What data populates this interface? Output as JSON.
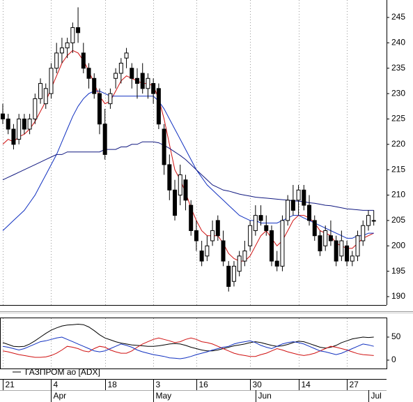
{
  "chart_data": [
    {
      "type": "candlestick",
      "categories": [
        "21",
        null,
        null,
        null,
        null,
        null,
        null,
        null,
        null,
        "4",
        null,
        null,
        null,
        null,
        null,
        null,
        null,
        null,
        null,
        "18",
        null,
        null,
        null,
        null,
        null,
        null,
        null,
        null,
        "3",
        null,
        null,
        null,
        null,
        null,
        null,
        null,
        "16",
        null,
        null,
        null,
        null,
        null,
        null,
        null,
        null,
        null,
        "30",
        null,
        null,
        null,
        null,
        null,
        null,
        null,
        null,
        "14",
        null,
        null,
        null,
        null,
        null,
        null,
        null,
        null,
        "27",
        null,
        null,
        null,
        null,
        null
      ],
      "months": [
        null,
        null,
        null,
        null,
        null,
        null,
        null,
        null,
        null,
        "Apr",
        null,
        null,
        null,
        null,
        null,
        null,
        null,
        null,
        null,
        null,
        null,
        null,
        null,
        null,
        null,
        null,
        null,
        null,
        "May",
        null,
        null,
        null,
        null,
        null,
        null,
        null,
        null,
        null,
        null,
        null,
        null,
        null,
        null,
        null,
        null,
        null,
        null,
        "Jun",
        null,
        null,
        null,
        null,
        null,
        null,
        null,
        null,
        null,
        null,
        null,
        null,
        null,
        null,
        null,
        null,
        null,
        null,
        null,
        null,
        "Jul",
        null
      ],
      "open": [
        226,
        225,
        223,
        221,
        225,
        223,
        225,
        229,
        228,
        230,
        235,
        238,
        239,
        240,
        243,
        238,
        235,
        233,
        230,
        224,
        228,
        233,
        234,
        237,
        235,
        233,
        234,
        231,
        232,
        231,
        223,
        216,
        211,
        210,
        213,
        208,
        203,
        199,
        198,
        201,
        205,
        201,
        196,
        193,
        195,
        197,
        200,
        203,
        206,
        204,
        203,
        197,
        196,
        205,
        209,
        209,
        211,
        208,
        205,
        202,
        200,
        202,
        201,
        198,
        200,
        197,
        198,
        201,
        204,
        205
      ],
      "high": [
        228,
        226,
        224,
        226,
        226,
        226,
        230,
        233,
        232,
        236,
        240,
        241,
        241,
        244,
        247,
        240,
        236,
        234,
        231,
        227,
        231,
        235,
        237,
        239,
        236,
        235,
        236,
        234,
        233,
        232,
        224,
        218,
        213,
        216,
        214,
        209,
        205,
        201,
        202,
        205,
        206,
        203,
        197,
        197,
        199,
        201,
        205,
        208,
        208,
        206,
        204,
        199,
        206,
        210,
        212,
        212,
        212,
        210,
        206,
        203,
        204,
        205,
        202,
        203,
        201,
        199,
        203,
        205,
        207,
        207
      ],
      "low": [
        224,
        222,
        219,
        220,
        222,
        222,
        224,
        228,
        227,
        229,
        234,
        236,
        237,
        238,
        240,
        234,
        231,
        229,
        222,
        217,
        227,
        231,
        232,
        235,
        231,
        229,
        230,
        229,
        228,
        223,
        214,
        209,
        205,
        208,
        207,
        202,
        199,
        196,
        197,
        200,
        201,
        196,
        191,
        192,
        194,
        196,
        199,
        202,
        204,
        202,
        196,
        195,
        195,
        204,
        206,
        206,
        207,
        204,
        201,
        198,
        199,
        200,
        196,
        197,
        196,
        196,
        197,
        200,
        203,
        204
      ],
      "close": [
        225,
        223,
        220,
        225,
        223,
        225,
        229,
        232,
        231,
        235,
        238,
        239,
        240,
        243,
        242,
        235,
        233,
        230,
        224,
        218,
        230,
        234,
        236,
        238,
        233,
        232,
        231,
        233,
        230,
        224,
        216,
        211,
        206,
        214,
        209,
        203,
        201,
        197,
        200,
        203,
        202,
        197,
        192,
        196,
        198,
        199,
        204,
        206,
        205,
        203,
        197,
        196,
        205,
        209,
        207,
        211,
        208,
        205,
        202,
        199,
        203,
        201,
        197,
        201,
        197,
        198,
        202,
        204,
        206,
        205
      ],
      "series": [
        {
          "color": "#d01010",
          "values": [
            220,
            221,
            220.5,
            221.5,
            222,
            223,
            224.5,
            226.5,
            228.5,
            231,
            233.5,
            236,
            237.5,
            238.5,
            238,
            236.5,
            234.5,
            232,
            229.5,
            228,
            228.5,
            230.5,
            232.5,
            233.5,
            233,
            232.5,
            232,
            232,
            231.5,
            229,
            225,
            220,
            215,
            213,
            210.5,
            207.5,
            205,
            203,
            202,
            202,
            202,
            200.5,
            198.5,
            197.5,
            197,
            197,
            198,
            200,
            202,
            203,
            201.5,
            200,
            201,
            203,
            205,
            206,
            206,
            205.5,
            204.5,
            203,
            202.5,
            202,
            200.5,
            200,
            199.5,
            199.5,
            200.5,
            201.5,
            202,
            202.5
          ]
        },
        {
          "color": "#1030c0",
          "values": [
            203,
            204,
            205,
            206,
            207,
            208.5,
            210,
            212,
            214,
            216,
            218,
            220.5,
            223,
            225.5,
            227.5,
            229,
            230,
            230.5,
            230.5,
            230,
            229.5,
            229.5,
            229.5,
            229.5,
            229.5,
            229.5,
            229.5,
            229.5,
            229.5,
            228.5,
            227,
            225,
            223,
            221,
            219,
            217,
            215,
            213.5,
            212,
            211,
            210,
            209,
            208,
            207,
            206,
            205.5,
            205,
            205,
            204.5,
            204.5,
            204.5,
            204.5,
            205,
            205.5,
            206,
            206,
            205.5,
            205,
            204.5,
            204,
            203.5,
            203,
            202.5,
            202,
            201.5,
            201.5,
            202,
            202,
            202.5,
            202.5
          ]
        },
        {
          "color": "#101880",
          "values": [
            213,
            213.5,
            214,
            214.5,
            215,
            215.5,
            216,
            216.5,
            217,
            217.5,
            218,
            218,
            218.5,
            218.5,
            218.5,
            218.5,
            218.5,
            218.5,
            218.5,
            219,
            219,
            219,
            219.5,
            219.5,
            220,
            220,
            220.5,
            220.5,
            220.5,
            220.3,
            219.8,
            219.2,
            218.5,
            217.8,
            217,
            216,
            215,
            214,
            213,
            212,
            211.5,
            211,
            210.8,
            210.5,
            210.2,
            210,
            209.8,
            209.6,
            209.5,
            209.4,
            209.3,
            209.2,
            209.1,
            209,
            208.9,
            208.8,
            208.7,
            208.5,
            208.4,
            208.2,
            208,
            207.9,
            207.7,
            207.5,
            207.3,
            207.2,
            207.1,
            207,
            207,
            207
          ]
        }
      ],
      "ylim": [
        188.35,
        248.44
      ],
      "yticks": [
        190,
        195,
        200,
        205,
        210,
        215,
        220,
        225,
        230,
        235,
        240,
        245
      ]
    },
    {
      "type": "line",
      "title": "ГАЗПРОМ ао [ADX]",
      "series": [
        {
          "color": "#000000",
          "values": [
            38,
            34,
            30,
            29,
            30,
            35,
            42,
            50,
            58,
            65,
            70,
            74,
            76,
            77,
            78,
            77,
            72,
            64,
            55,
            48,
            44,
            40,
            37,
            35,
            33,
            32,
            31,
            30,
            30,
            31,
            33,
            35,
            36,
            35,
            32,
            28,
            25,
            22,
            20,
            20,
            22,
            25,
            28,
            31,
            33,
            35,
            38,
            40,
            38,
            35,
            32,
            30,
            31,
            34,
            38,
            41,
            40,
            36,
            32,
            28,
            26,
            28,
            32,
            38,
            42,
            46,
            48,
            50,
            49,
            50
          ]
        },
        {
          "color": "#d01010",
          "values": [
            20,
            18,
            15,
            12,
            10,
            8,
            6,
            6,
            7,
            10,
            15,
            22,
            30,
            28,
            25,
            20,
            18,
            25,
            30,
            28,
            22,
            18,
            15,
            15,
            20,
            28,
            35,
            40,
            45,
            48,
            45,
            42,
            38,
            40,
            45,
            48,
            45,
            40,
            38,
            35,
            30,
            25,
            20,
            15,
            12,
            10,
            8,
            8,
            12,
            15,
            20,
            25,
            22,
            18,
            15,
            12,
            10,
            12,
            15,
            20,
            25,
            30,
            28,
            25,
            22,
            18,
            14,
            12,
            11,
            10
          ]
        },
        {
          "color": "#1030c0",
          "values": [
            30,
            28,
            25,
            22,
            25,
            30,
            35,
            40,
            42,
            45,
            48,
            50,
            45,
            40,
            35,
            30,
            25,
            20,
            18,
            20,
            25,
            30,
            35,
            32,
            28,
            22,
            18,
            15,
            12,
            10,
            8,
            5,
            4,
            3,
            5,
            8,
            12,
            15,
            18,
            22,
            25,
            28,
            30,
            35,
            38,
            40,
            42,
            38,
            32,
            28,
            25,
            30,
            35,
            38,
            40,
            38,
            35,
            30,
            25,
            20,
            18,
            15,
            12,
            15,
            20,
            25,
            30,
            35,
            33,
            30
          ]
        }
      ],
      "ylim": [
        -18.2,
        92.4
      ],
      "yticks": [
        0,
        50
      ]
    }
  ]
}
